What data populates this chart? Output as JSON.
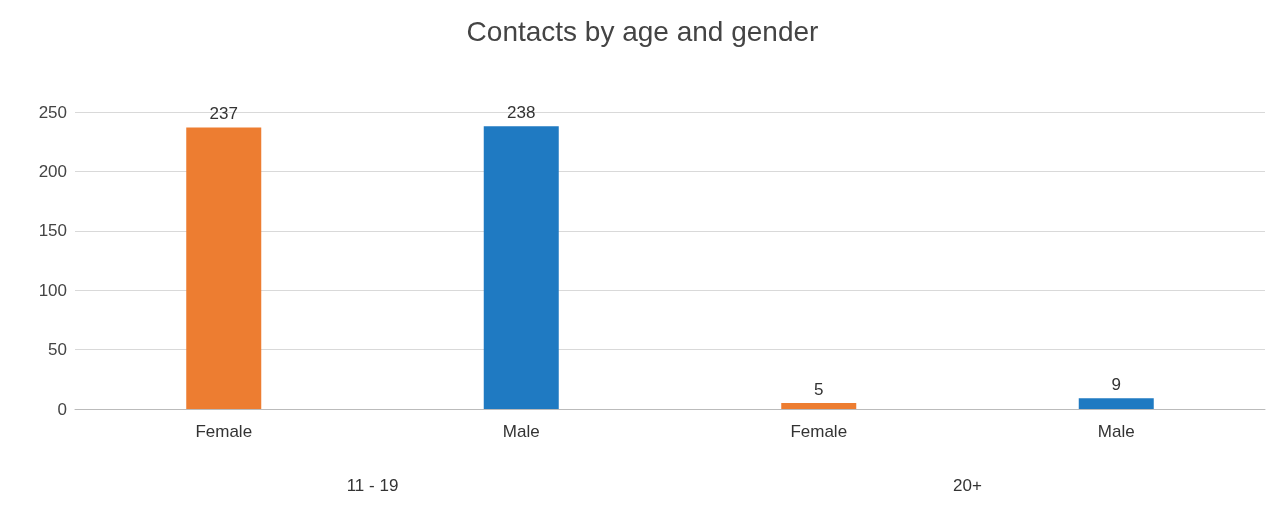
{
  "chart_data": {
    "type": "bar",
    "title": "Contacts by age and gender",
    "categories": [
      "Female",
      "Male",
      "Female",
      "Male"
    ],
    "values": [
      237,
      238,
      5,
      9
    ],
    "colors": [
      "#ed7d31",
      "#1f7ac2",
      "#ed7d31",
      "#1f7ac2"
    ],
    "ylim": [
      0,
      250
    ],
    "yticks": [
      0,
      50,
      100,
      150,
      200,
      250
    ],
    "grid": "y",
    "data_labels": true,
    "annotations": [
      "11 - 19",
      "20+"
    ]
  }
}
